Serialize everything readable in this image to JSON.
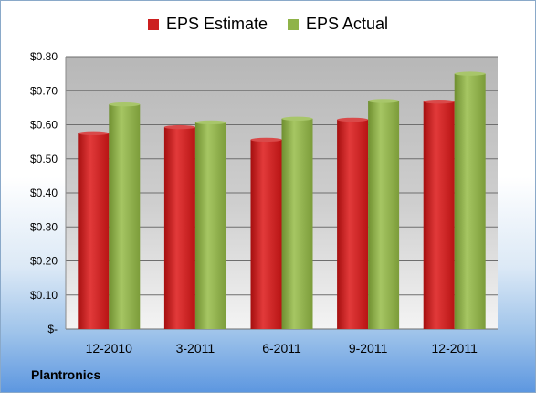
{
  "company": "Plantronics",
  "colors": {
    "estimate": "#cc1f1f",
    "actual": "#8fb348"
  },
  "chart_data": {
    "type": "bar",
    "categories": [
      "12-2010",
      "3-2011",
      "6-2011",
      "9-2011",
      "12-2011"
    ],
    "series": [
      {
        "name": "EPS Estimate",
        "values": [
          0.575,
          0.593,
          0.556,
          0.615,
          0.668
        ]
      },
      {
        "name": "EPS Actual",
        "values": [
          0.66,
          0.607,
          0.618,
          0.67,
          0.75
        ]
      }
    ],
    "ylim": [
      0,
      0.8
    ],
    "yticks": [
      0,
      0.1,
      0.2,
      0.3,
      0.4,
      0.5,
      0.6,
      0.7,
      0.8
    ],
    "ytick_labels": [
      "$-",
      "$0.10",
      "$0.20",
      "$0.30",
      "$0.40",
      "$0.50",
      "$0.60",
      "$0.70",
      "$0.80"
    ],
    "grid": true,
    "legend_position": "top"
  }
}
